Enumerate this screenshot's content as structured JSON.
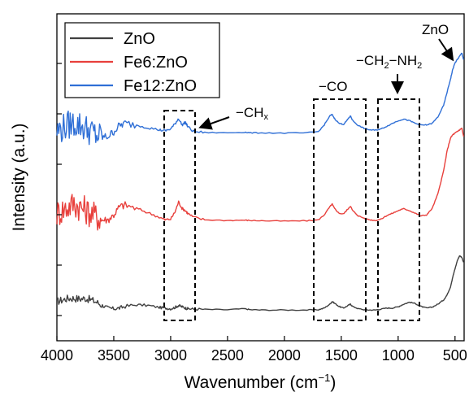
{
  "chart_data": {
    "type": "line",
    "title": "",
    "xlabel": "Wavenumber (cm",
    "xlabel_sup": "−1",
    "xlabel_tail": ")",
    "ylabel": "Intensity (a.u.)",
    "x_reversed": true,
    "xlim": [
      4000,
      420
    ],
    "ylim": [
      0,
      1
    ],
    "x_ticks": [
      4000,
      3500,
      3000,
      2500,
      2000,
      1500,
      1000,
      500
    ],
    "x_tick_labels": [
      "4000",
      "3500",
      "3000",
      "2500",
      "2000",
      "1500",
      "1000",
      "500"
    ],
    "y_tick_labels_shown": false,
    "grid": false,
    "legend_position": "top-left",
    "series": [
      {
        "name": "ZnO",
        "color": "#404040",
        "baseline": 0.085,
        "x": [
          4000,
          3950,
          3900,
          3850,
          3800,
          3750,
          3700,
          3650,
          3600,
          3550,
          3500,
          3450,
          3400,
          3300,
          3200,
          3100,
          3050,
          3000,
          2960,
          2930,
          2900,
          2870,
          2850,
          2800,
          2700,
          2500,
          2350,
          2300,
          2200,
          2000,
          1800,
          1700,
          1650,
          1600,
          1580,
          1560,
          1520,
          1480,
          1450,
          1420,
          1400,
          1350,
          1300,
          1250,
          1200,
          1150,
          1100,
          1050,
          1000,
          950,
          900,
          850,
          800,
          750,
          700,
          650,
          600,
          570,
          540,
          520,
          500,
          480,
          460,
          440,
          425
        ],
        "values": [
          0.12,
          0.125,
          0.13,
          0.13,
          0.128,
          0.13,
          0.125,
          0.118,
          0.108,
          0.1,
          0.098,
          0.1,
          0.105,
          0.11,
          0.108,
          0.102,
          0.1,
          0.098,
          0.102,
          0.108,
          0.104,
          0.1,
          0.098,
          0.097,
          0.096,
          0.095,
          0.098,
          0.095,
          0.094,
          0.094,
          0.094,
          0.095,
          0.1,
          0.112,
          0.12,
          0.115,
          0.105,
          0.1,
          0.106,
          0.112,
          0.105,
          0.098,
          0.095,
          0.094,
          0.094,
          0.097,
          0.1,
          0.1,
          0.104,
          0.112,
          0.118,
          0.114,
          0.105,
          0.1,
          0.103,
          0.112,
          0.125,
          0.14,
          0.165,
          0.195,
          0.22,
          0.245,
          0.26,
          0.255,
          0.24
        ]
      },
      {
        "name": "Fe6:ZnO",
        "color": "#e8403c",
        "baseline": 0.36,
        "x": [
          4000,
          3950,
          3900,
          3850,
          3800,
          3750,
          3700,
          3650,
          3600,
          3550,
          3500,
          3450,
          3400,
          3300,
          3200,
          3100,
          3050,
          3000,
          2960,
          2930,
          2900,
          2870,
          2850,
          2800,
          2700,
          2500,
          2350,
          2300,
          2200,
          2000,
          1800,
          1700,
          1650,
          1600,
          1580,
          1560,
          1520,
          1480,
          1450,
          1420,
          1400,
          1350,
          1300,
          1250,
          1200,
          1150,
          1100,
          1050,
          1000,
          950,
          900,
          850,
          800,
          750,
          700,
          650,
          600,
          570,
          540,
          520,
          500,
          480,
          460,
          440,
          425
        ],
        "values": [
          0.39,
          0.4,
          0.41,
          0.42,
          0.41,
          0.4,
          0.39,
          0.38,
          0.37,
          0.37,
          0.385,
          0.41,
          0.415,
          0.405,
          0.392,
          0.378,
          0.37,
          0.372,
          0.395,
          0.425,
          0.405,
          0.398,
          0.39,
          0.378,
          0.37,
          0.368,
          0.369,
          0.368,
          0.367,
          0.366,
          0.367,
          0.37,
          0.385,
          0.41,
          0.418,
          0.405,
          0.39,
          0.388,
          0.4,
          0.412,
          0.398,
          0.382,
          0.375,
          0.37,
          0.368,
          0.372,
          0.383,
          0.39,
          0.398,
          0.404,
          0.398,
          0.39,
          0.382,
          0.385,
          0.405,
          0.45,
          0.52,
          0.58,
          0.62,
          0.63,
          0.635,
          0.64,
          0.645,
          0.65,
          0.625
        ]
      },
      {
        "name": "Fe12:ZnO",
        "color": "#2f6fd6",
        "baseline": 0.6,
        "x": [
          4000,
          3950,
          3900,
          3850,
          3800,
          3750,
          3700,
          3650,
          3600,
          3550,
          3500,
          3450,
          3400,
          3300,
          3200,
          3100,
          3050,
          3000,
          2960,
          2930,
          2900,
          2870,
          2850,
          2800,
          2700,
          2500,
          2350,
          2300,
          2200,
          2000,
          1800,
          1700,
          1650,
          1600,
          1580,
          1560,
          1520,
          1480,
          1450,
          1420,
          1400,
          1350,
          1300,
          1250,
          1200,
          1150,
          1100,
          1050,
          1000,
          950,
          900,
          850,
          800,
          750,
          700,
          650,
          600,
          570,
          540,
          520,
          500,
          480,
          460,
          440,
          425
        ],
        "values": [
          0.64,
          0.65,
          0.66,
          0.665,
          0.66,
          0.65,
          0.64,
          0.628,
          0.622,
          0.625,
          0.64,
          0.658,
          0.665,
          0.66,
          0.652,
          0.645,
          0.642,
          0.648,
          0.664,
          0.68,
          0.66,
          0.668,
          0.655,
          0.64,
          0.637,
          0.636,
          0.638,
          0.636,
          0.636,
          0.635,
          0.636,
          0.64,
          0.66,
          0.688,
          0.692,
          0.68,
          0.665,
          0.662,
          0.674,
          0.688,
          0.674,
          0.658,
          0.65,
          0.645,
          0.644,
          0.648,
          0.656,
          0.665,
          0.673,
          0.678,
          0.673,
          0.665,
          0.66,
          0.66,
          0.665,
          0.685,
          0.72,
          0.76,
          0.8,
          0.83,
          0.85,
          0.86,
          0.87,
          0.88,
          0.86
        ]
      }
    ],
    "annotations": [
      {
        "id": "ch",
        "text": "−CH",
        "sub": "x",
        "box_x": [
          3070,
          2790
        ],
        "arrow_to_x": 2820
      },
      {
        "id": "co",
        "text": "−CO",
        "box_x": [
          1730,
          1280
        ]
      },
      {
        "id": "ch2nh2",
        "text": "−CH",
        "sub1": "2",
        "mid": "−NH",
        "sub2": "2",
        "box_x": [
          1160,
          800
        ],
        "arrow_to_x": 980
      },
      {
        "id": "zno",
        "text": "ZnO",
        "arrow_to_x": 460
      }
    ]
  }
}
